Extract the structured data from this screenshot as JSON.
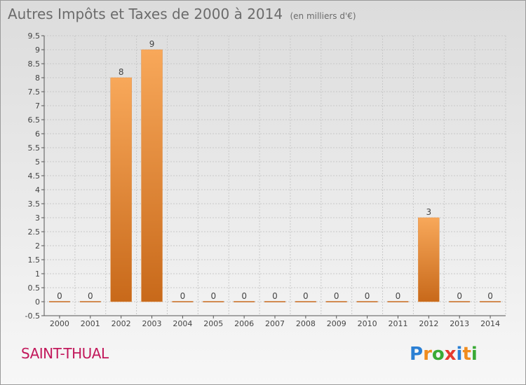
{
  "title": {
    "main": "Autres Impôts et Taxes de 2000 à 2014",
    "unit": "(en milliers d'€)"
  },
  "commune": "SAINT-THUAL",
  "logo": {
    "letters": [
      "P",
      "r",
      "o",
      "x",
      "i",
      "t",
      "i"
    ],
    "colors": [
      "#2a7fd4",
      "#f08c1e",
      "#3aaa35",
      "#e63a2e",
      "#2a7fd4",
      "#f08c1e",
      "#3aaa35"
    ]
  },
  "colors": {
    "bar_top": "#f8a85a",
    "bar_bottom": "#c8691a",
    "grid": "#c8c8c8",
    "axis": "#555555"
  },
  "chart_data": {
    "type": "bar",
    "categories": [
      "2000",
      "2001",
      "2002",
      "2003",
      "2004",
      "2005",
      "2006",
      "2007",
      "2008",
      "2009",
      "2010",
      "2011",
      "2012",
      "2013",
      "2014"
    ],
    "values": [
      0,
      0,
      8,
      9,
      0,
      0,
      0,
      0,
      0,
      0,
      0,
      0,
      3,
      0,
      0
    ],
    "data_labels": [
      "0",
      "0",
      "8",
      "9",
      "0",
      "0",
      "0",
      "0",
      "0",
      "0",
      "0",
      "0",
      "3",
      "0",
      "0"
    ],
    "ylim": [
      -0.5,
      9.5
    ],
    "y_ticks": [
      -0.5,
      0,
      0.5,
      1,
      1.5,
      2,
      2.5,
      3,
      3.5,
      4,
      4.5,
      5,
      5.5,
      6,
      6.5,
      7,
      7.5,
      8,
      8.5,
      9,
      9.5
    ],
    "y_tick_labels": [
      "-0.5",
      "0",
      "0.5",
      "1",
      "1.5",
      "2",
      "2.5",
      "3",
      "3.5",
      "4",
      "4.5",
      "5",
      "5.5",
      "6",
      "6.5",
      "7",
      "7.5",
      "8",
      "8.5",
      "9",
      "9.5"
    ],
    "grid": true
  }
}
